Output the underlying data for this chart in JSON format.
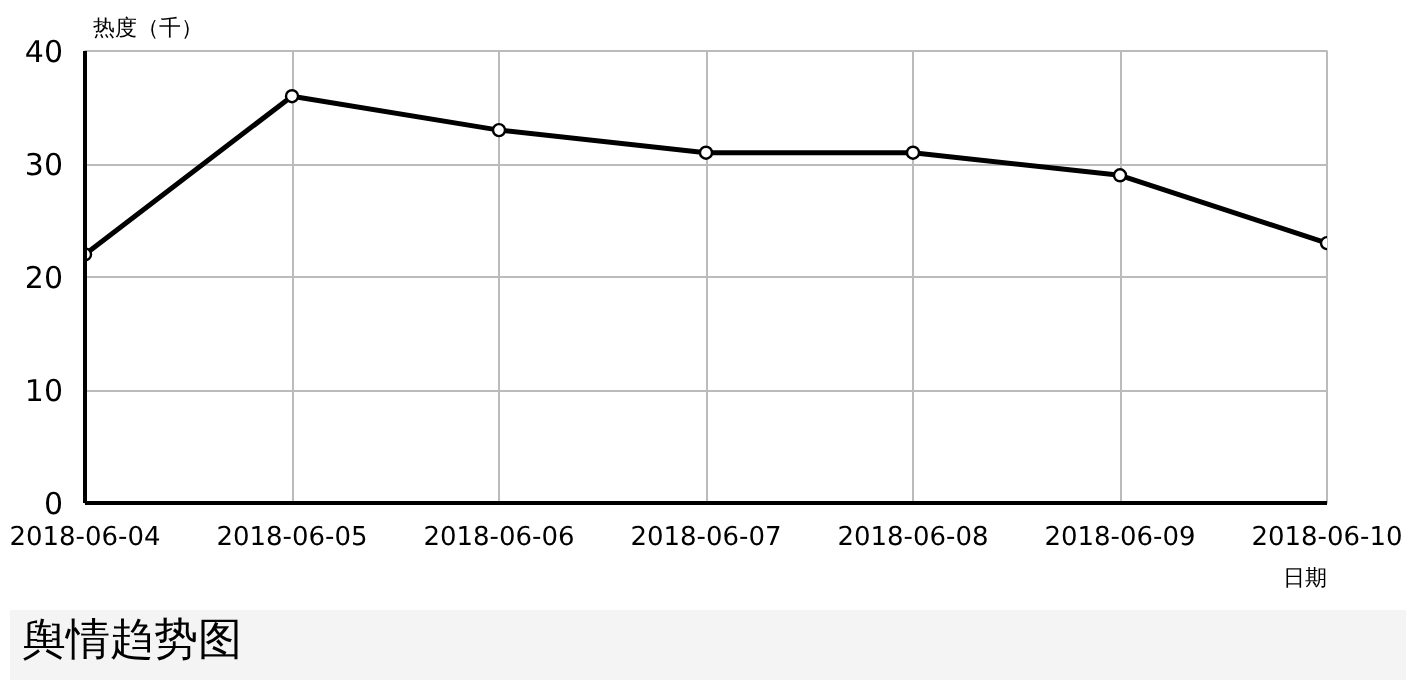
{
  "chart_data": {
    "type": "line",
    "ylabel": "热度（千）",
    "xlabel": "日期",
    "categories": [
      "2018-06-04",
      "2018-06-05",
      "2018-06-06",
      "2018-06-07",
      "2018-06-08",
      "2018-06-09",
      "2018-06-10"
    ],
    "series": [
      {
        "color": "#000000",
        "values": [
          22,
          36,
          33,
          31,
          31,
          29,
          23
        ]
      }
    ],
    "ylim": [
      0,
      40
    ],
    "yticks": [
      0,
      10,
      20,
      30,
      40
    ],
    "grid": true,
    "marker": "circle",
    "line_style": "solid",
    "annotations": [
      "舆情趋势图"
    ]
  }
}
